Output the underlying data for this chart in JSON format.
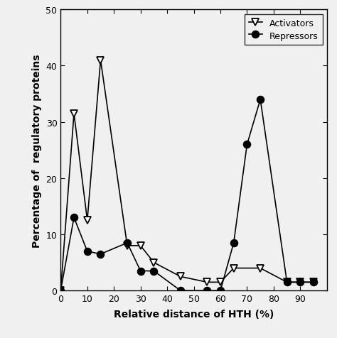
{
  "activators_x": [
    0,
    5,
    10,
    15,
    25,
    30,
    35,
    45,
    55,
    60,
    65,
    75,
    85,
    90,
    95
  ],
  "activators_y": [
    0,
    31.5,
    12.5,
    41,
    8,
    8,
    5,
    2.5,
    1.5,
    1.5,
    4,
    4,
    1.5,
    1.5,
    1.5
  ],
  "repressors_x": [
    0,
    5,
    10,
    15,
    25,
    30,
    35,
    45,
    55,
    60,
    65,
    70,
    75,
    85,
    90,
    95
  ],
  "repressors_y": [
    0,
    13,
    7,
    6.5,
    8.5,
    3.5,
    3.5,
    0,
    0,
    0,
    8.5,
    26,
    34,
    1.5,
    1.5,
    1.5
  ],
  "xlabel": "Relative distance of HTH (%)",
  "ylabel": "Percentage of  regulatory proteins",
  "xlim": [
    0,
    100
  ],
  "ylim": [
    0,
    50
  ],
  "xticks": [
    0,
    10,
    20,
    30,
    40,
    50,
    60,
    70,
    80,
    90
  ],
  "yticks": [
    0,
    10,
    20,
    30,
    40,
    50
  ],
  "legend_activators": "Activators",
  "legend_repressors": "Repressors",
  "line_color": "#000000",
  "background_color": "#f0f0f0",
  "marker_activator": "v",
  "marker_repressor": "o",
  "marker_size_activator": 7,
  "marker_size_repressor": 7,
  "linewidth": 1.2,
  "tick_fontsize": 9,
  "label_fontsize": 10
}
